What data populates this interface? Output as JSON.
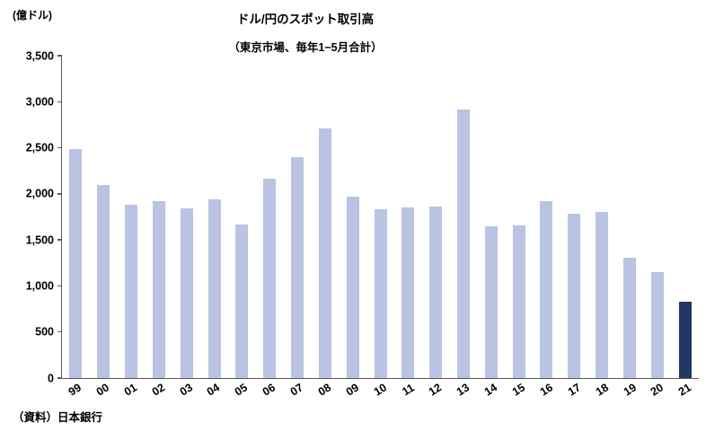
{
  "chart_data": {
    "type": "bar",
    "title": "ドル/円のスポット取引高",
    "subtitle": "（東京市場、毎年1−5月合計）",
    "unit_label": "(億ドル)",
    "source": "（資料）日本銀行",
    "categories": [
      "99",
      "00",
      "01",
      "02",
      "03",
      "04",
      "05",
      "06",
      "07",
      "08",
      "09",
      "10",
      "11",
      "12",
      "13",
      "14",
      "15",
      "16",
      "17",
      "18",
      "19",
      "20",
      "21"
    ],
    "values": [
      2490,
      2100,
      1880,
      1920,
      1840,
      1940,
      1670,
      2160,
      2400,
      2710,
      1970,
      1830,
      1850,
      1860,
      2920,
      1650,
      1660,
      1920,
      1780,
      1800,
      1310,
      1150,
      830
    ],
    "ylim": [
      0,
      3500
    ],
    "ytick_interval": 500,
    "ytick_labels": [
      "0",
      "500",
      "1,000",
      "1,500",
      "2,000",
      "2,500",
      "3,000",
      "3,500"
    ],
    "grid": false,
    "legend": "none",
    "bar_color": "#b8c4e2",
    "highlight_index": 22,
    "highlight_color": "#1f3864",
    "axis_color": "#595959"
  }
}
